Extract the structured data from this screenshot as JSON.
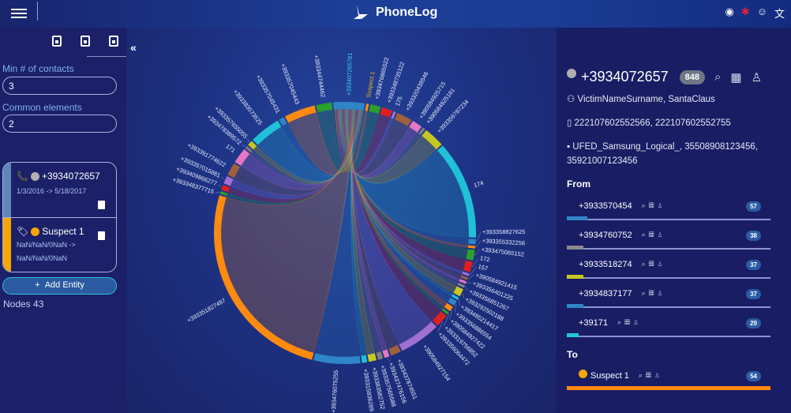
{
  "header": {
    "app_title": "PhoneLog",
    "icons": [
      "menu-icon",
      "alert-icon",
      "settings-icon",
      "user-icon",
      "translate-icon"
    ]
  },
  "left": {
    "tools": [
      "save-all-icon",
      "save-icon",
      "export-icon"
    ],
    "min_contacts_label": "Min # of contacts",
    "min_contacts_value": "3",
    "common_label": "Common elements",
    "common_value": "2",
    "entities": [
      {
        "title": "+3934072657",
        "dates": "1/3/2016 -> 5/18/2017",
        "dates2": "",
        "color": "#b0b0b0",
        "bar": "#5e86b8",
        "icon": "phone-icon"
      },
      {
        "title": "Suspect 1",
        "dates": "NaN/NaN/0NaN ->",
        "dates2": "NaN/NaN/0NaN",
        "color": "#f5a700",
        "bar": "#f5a700",
        "icon": "tag-icon"
      }
    ],
    "add_label": "Add Entity",
    "nodes": "Nodes 43"
  },
  "right": {
    "number": "+3934072657",
    "badge": "848",
    "names": "VictimNameSurname, SantaClaus",
    "imei": "222107602552566, 222107602552755",
    "sim": "UFED_Samsung_Logical_, 35508908123456, 35921007123456",
    "from_label": "From",
    "to_label": "To",
    "from": [
      {
        "number": "+3933570454",
        "count": "57",
        "color": "#2e86c8",
        "fill": 0.1
      },
      {
        "number": "+3934760752",
        "count": "38",
        "color": "#8a8a8a",
        "fill": 0.08
      },
      {
        "number": "+3933518274",
        "count": "37",
        "color": "#c8c820",
        "fill": 0.08
      },
      {
        "number": "+3934837177",
        "count": "37",
        "color": "#2e86c8",
        "fill": 0.08
      },
      {
        "number": "+39171",
        "count": "29",
        "color": "#20c8d8",
        "fill": 0.06
      }
    ],
    "to": [
      {
        "number": "Suspect 1",
        "count": "54",
        "color": "#ff8a10",
        "fill": 1,
        "dot": "#f5a700"
      }
    ]
  },
  "chart_data": {
    "type": "chord",
    "hub": "+3934072657",
    "nodes": [
      {
        "label": "+393407265781",
        "color": "#2e86c8",
        "value": 12
      },
      {
        "label": "Suspect 1",
        "color": "#ff8a10",
        "value": 1
      },
      {
        "label": "+393476865522",
        "color": "#2ca02c",
        "value": 4
      },
      {
        "label": "+393348735122",
        "color": "#e02020",
        "value": 4
      },
      {
        "label": "175",
        "color": "#a070d0",
        "value": 1
      },
      {
        "label": "+393320438546",
        "color": "#a0603a",
        "value": 6
      },
      {
        "label": "+390584925715",
        "color": "#e377c2",
        "value": 4
      },
      {
        "label": "+390584925161",
        "color": "#7f7f7f",
        "value": 1
      },
      {
        "label": "+393356787234",
        "color": "#c8c820",
        "value": 8
      },
      {
        "label": "174",
        "color": "#20c0d8",
        "value": 38
      },
      {
        "label": "+393358827625",
        "color": "#2e86c8",
        "value": 2
      },
      {
        "label": "+393355332256",
        "color": "#ff8a10",
        "value": 1
      },
      {
        "label": "+393475065152",
        "color": "#2ca02c",
        "value": 4
      },
      {
        "label": "172",
        "color": "#e02020",
        "value": 4
      },
      {
        "label": "157",
        "color": "#a070d0",
        "value": 1
      },
      {
        "label": "+390584921415",
        "color": "#a0603a",
        "value": 1
      },
      {
        "label": "+393356401225",
        "color": "#e377c2",
        "value": 1
      },
      {
        "label": "+393356851267",
        "color": "#7f7f7f",
        "value": 1
      },
      {
        "label": "+393292502188",
        "color": "#c8c820",
        "value": 3
      },
      {
        "label": "+393485214417",
        "color": "#20c0d8",
        "value": 1
      },
      {
        "label": "+393356886554",
        "color": "#2e86c8",
        "value": 2
      },
      {
        "label": "+390584927422",
        "color": "#ff8a10",
        "value": 2
      },
      {
        "label": "+393319756852",
        "color": "#2ca02c",
        "value": 1
      },
      {
        "label": "+393356064472",
        "color": "#e02020",
        "value": 5
      },
      {
        "label": "+390584927154",
        "color": "#a070d0",
        "value": 16
      },
      {
        "label": "+393437874551",
        "color": "#a0603a",
        "value": 4
      },
      {
        "label": "+393437476156",
        "color": "#e377c2",
        "value": 2
      },
      {
        "label": "+393357565588",
        "color": "#7f7f7f",
        "value": 2
      },
      {
        "label": "+393383582752",
        "color": "#c8c820",
        "value": 3
      },
      {
        "label": "+393315836289",
        "color": "#20c0d8",
        "value": 2
      },
      {
        "label": "+393476075255",
        "color": "#2e86c8",
        "value": 18
      },
      {
        "label": "+393351827487",
        "color": "#ff8a10",
        "value": 80
      },
      {
        "label": "+393348377715",
        "color": "#2ca02c",
        "value": 1
      },
      {
        "label": "+393409866277",
        "color": "#e02020",
        "value": 2
      },
      {
        "label": "+393357015881",
        "color": "#a070d0",
        "value": 3
      },
      {
        "label": "+393391774622",
        "color": "#a0603a",
        "value": 5
      },
      {
        "label": "171",
        "color": "#e377c2",
        "value": 6
      },
      {
        "label": "+393478389572",
        "color": "#7f7f7f",
        "value": 1
      },
      {
        "label": "+393357655055",
        "color": "#c8c820",
        "value": 2
      },
      {
        "label": "+393383573525",
        "color": "#20c0d8",
        "value": 12
      },
      {
        "label": "+393357045431",
        "color": "#2e86c8",
        "value": 2
      },
      {
        "label": "+393357045443",
        "color": "#ff8a10",
        "value": 12
      },
      {
        "label": "+393344744462",
        "color": "#2ca02c",
        "value": 6
      }
    ]
  }
}
